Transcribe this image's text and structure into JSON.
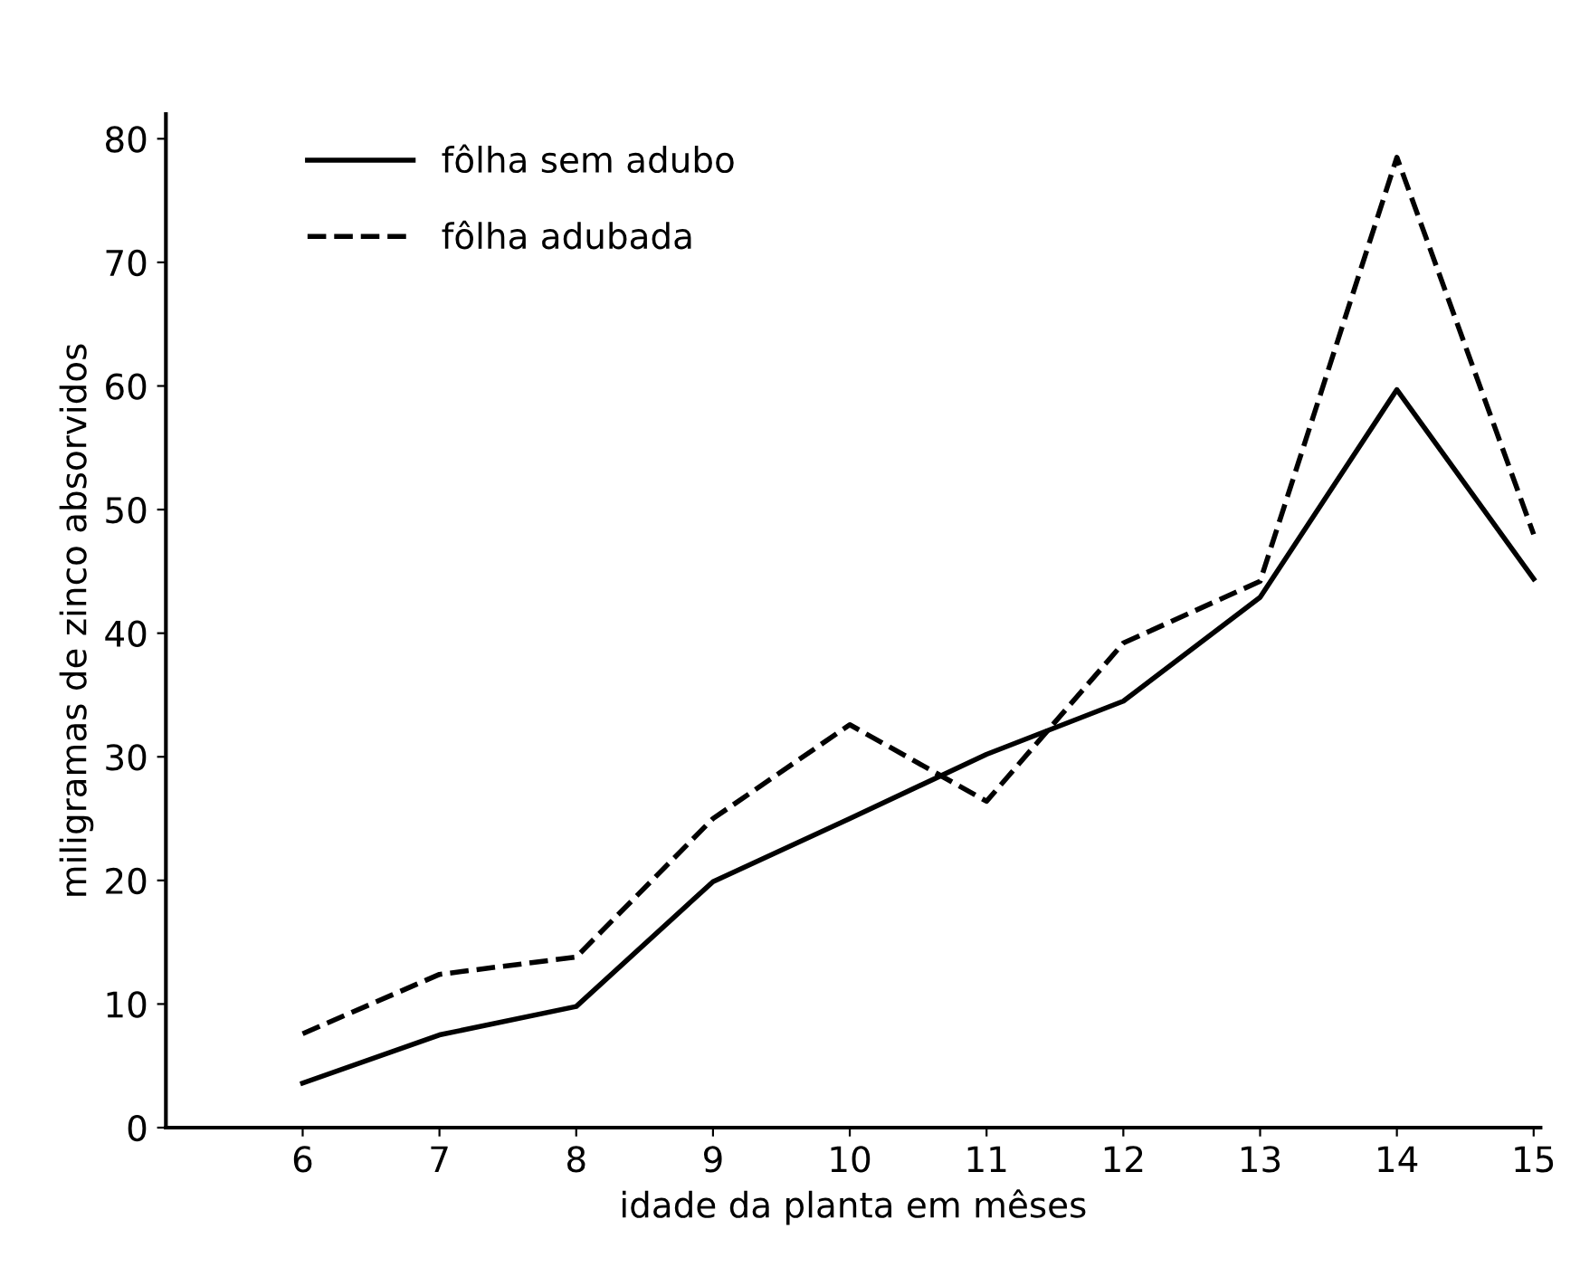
{
  "chart_data": {
    "type": "line",
    "xlabel": "idade da planta em mêses",
    "ylabel": "miligramas de zinco absorvidos",
    "x": [
      6,
      7,
      8,
      9,
      10,
      11,
      12,
      13,
      14,
      15
    ],
    "series": [
      {
        "name": "fôlha sem adubo",
        "color": "#000000",
        "line_style": "solid",
        "values": [
          3.6,
          7.5,
          9.8,
          19.9,
          25,
          30.2,
          34.5,
          42.9,
          59.7,
          44.4
        ]
      },
      {
        "name": "fôlha adubada",
        "color": "#000000",
        "line_style": "dashed",
        "values": [
          7.6,
          12.4,
          13.8,
          25,
          32.6,
          26.4,
          39.2,
          44.2,
          78.5,
          48
        ]
      }
    ],
    "xlim": [
      5,
      15.05
    ],
    "ylim": [
      0,
      82
    ],
    "xticks": [
      6,
      7,
      8,
      9,
      10,
      11,
      12,
      13,
      14,
      15
    ],
    "yticks": [
      0,
      10,
      20,
      30,
      40,
      50,
      60,
      70,
      80
    ],
    "grid": false,
    "legend": "top left",
    "marker": "none"
  }
}
